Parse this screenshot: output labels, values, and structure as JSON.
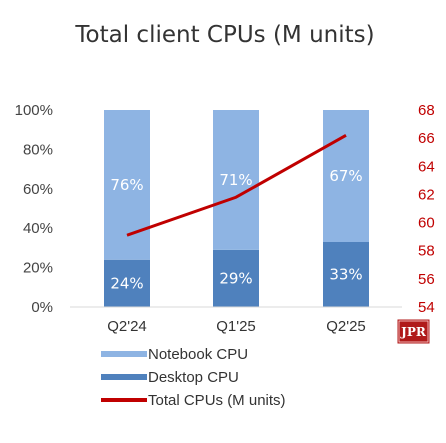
{
  "chart_data": {
    "type": "bar",
    "title": "Total client CPUs (M units)",
    "categories": [
      "Q2'24",
      "Q1'25",
      "Q2'25"
    ],
    "stacked": true,
    "series": [
      {
        "name": "Notebook CPU",
        "values": [
          76,
          71,
          67
        ],
        "labels": [
          "76%",
          "71%",
          "67%"
        ],
        "color": "#8eb4e3",
        "axis": "left"
      },
      {
        "name": "Desktop CPU",
        "values": [
          24,
          29,
          33
        ],
        "labels": [
          "24%",
          "29%",
          "33%"
        ],
        "color": "#4f81bd",
        "axis": "left"
      }
    ],
    "line": {
      "name": "Total CPUs (M units)",
      "values": [
        59.1,
        61.8,
        66.2
      ],
      "color": "#c00000",
      "axis": "right"
    },
    "left_axis": {
      "ylim": [
        0,
        100
      ],
      "ticks": [
        "0%",
        "20%",
        "40%",
        "60%",
        "80%",
        "100%"
      ]
    },
    "right_axis": {
      "ylim": [
        54,
        68
      ],
      "ticks": [
        "54",
        "56",
        "58",
        "60",
        "62",
        "64",
        "66",
        "68"
      ]
    },
    "legend": {
      "position": "bottom-left"
    },
    "grid": false
  },
  "logo": {
    "text": "JPR"
  }
}
